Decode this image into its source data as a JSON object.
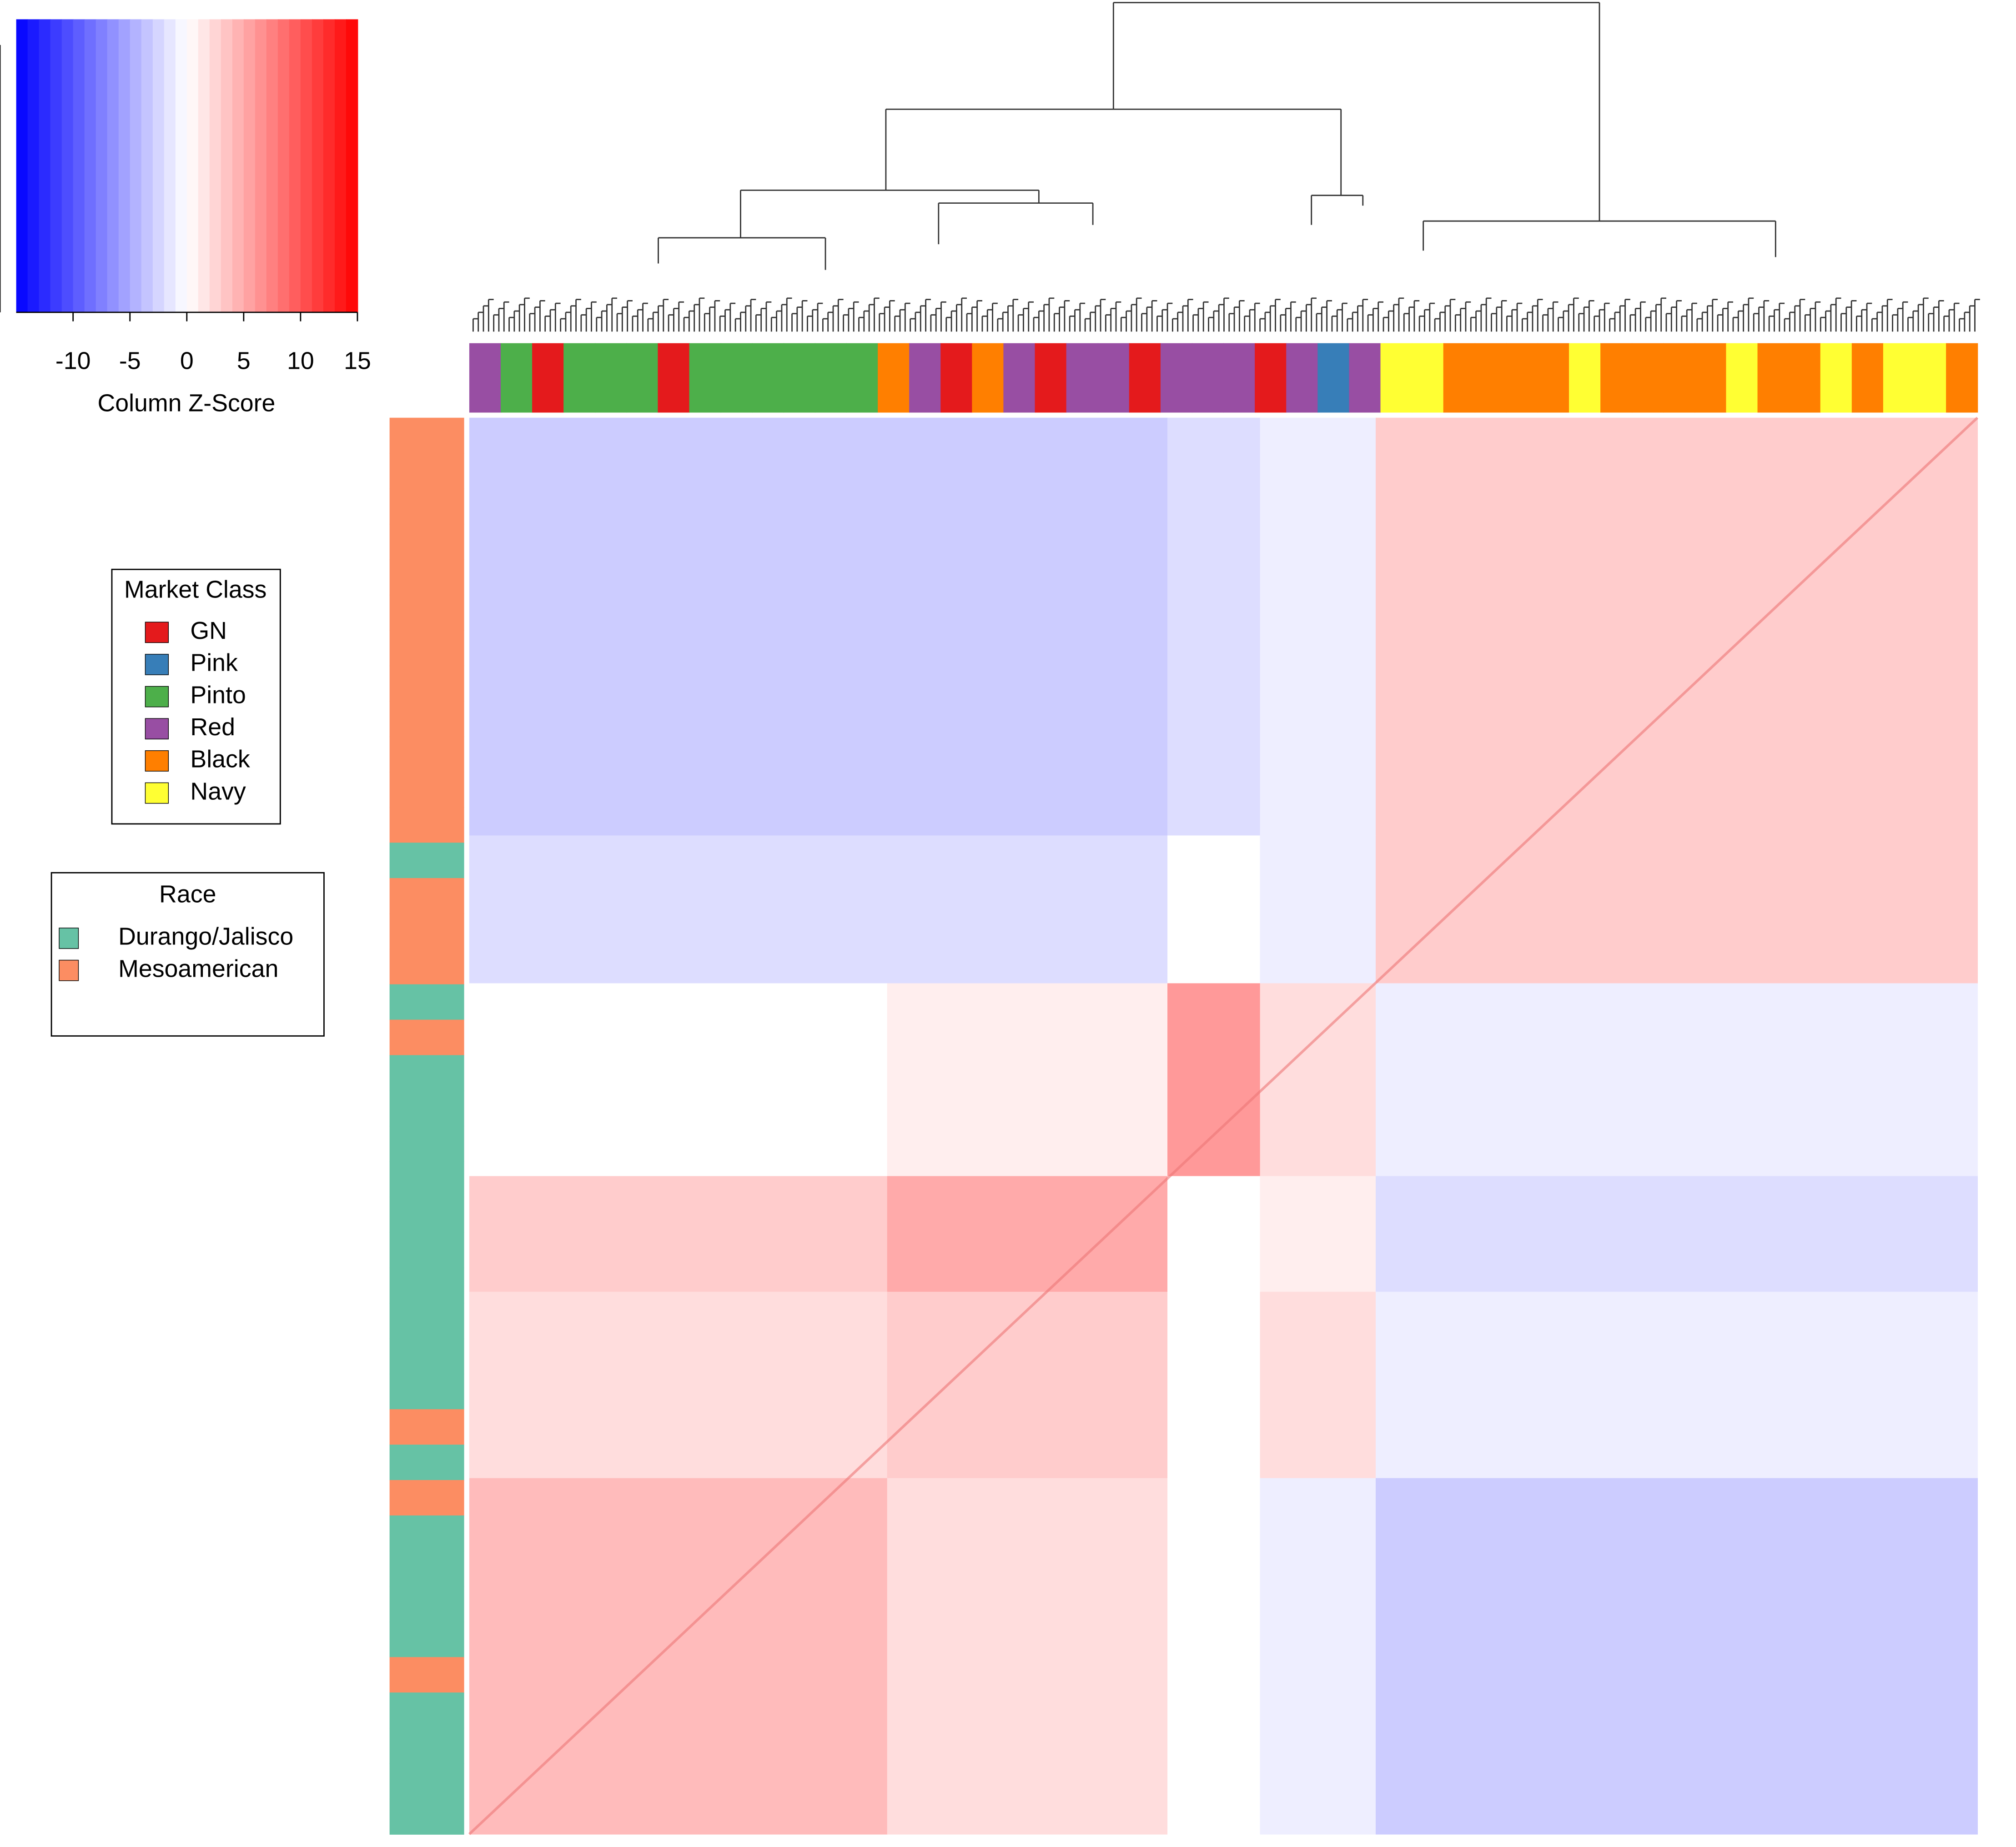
{
  "chart_data": {
    "type": "heatmap",
    "xlabel": "Column Z-Score",
    "xlim": [
      -15,
      15
    ],
    "xticks": [
      -10,
      -5,
      0,
      5,
      10,
      15
    ],
    "low_color": "#0000ff",
    "mid_color": "#ffffff",
    "high_color": "#ff0000",
    "values": [
      [
        -3,
        -3,
        -2,
        -1,
        3
      ],
      [
        -2,
        -2,
        0,
        -1,
        3
      ],
      [
        0,
        1,
        6,
        2,
        -1
      ],
      [
        3,
        5,
        0,
        1,
        -2
      ],
      [
        2,
        3,
        0,
        2,
        -1
      ],
      [
        4,
        2,
        0,
        -1,
        -3
      ]
    ],
    "column_classes": [
      "Red",
      "Pinto",
      "GN",
      "Pinto",
      "Pinto",
      "Pinto",
      "GN",
      "Pinto",
      "Pinto",
      "Pinto",
      "Pinto",
      "Pinto",
      "Pinto",
      "Black",
      "Red",
      "GN",
      "Black",
      "Red",
      "GN",
      "Red",
      "Red",
      "GN",
      "Red",
      "Red",
      "Red",
      "GN",
      "Red",
      "Pink",
      "Red",
      "Navy",
      "Navy",
      "Black",
      "Black",
      "Black",
      "Black",
      "Navy",
      "Black",
      "Black",
      "Black",
      "Black",
      "Navy",
      "Black",
      "Black",
      "Navy",
      "Black",
      "Navy",
      "Navy",
      "Black"
    ],
    "row_races": [
      "Mesoamerican",
      "Mesoamerican",
      "Mesoamerican",
      "Mesoamerican",
      "Mesoamerican",
      "Mesoamerican",
      "Mesoamerican",
      "Mesoamerican",
      "Mesoamerican",
      "Mesoamerican",
      "Mesoamerican",
      "Mesoamerican",
      "Durango/Jalisco",
      "Mesoamerican",
      "Mesoamerican",
      "Mesoamerican",
      "Durango/Jalisco",
      "Mesoamerican",
      "Durango/Jalisco",
      "Durango/Jalisco",
      "Durango/Jalisco",
      "Durango/Jalisco",
      "Durango/Jalisco",
      "Durango/Jalisco",
      "Durango/Jalisco",
      "Durango/Jalisco",
      "Durango/Jalisco",
      "Durango/Jalisco",
      "Mesoamerican",
      "Durango/Jalisco",
      "Mesoamerican",
      "Durango/Jalisco",
      "Durango/Jalisco",
      "Durango/Jalisco",
      "Durango/Jalisco",
      "Mesoamerican",
      "Durango/Jalisco",
      "Durango/Jalisco",
      "Durango/Jalisco",
      "Durango/Jalisco"
    ],
    "market_class": {
      "title": "Market Class",
      "entries": [
        {
          "name": "GN",
          "color": "#e41a1c"
        },
        {
          "name": "Pink",
          "color": "#377eb8"
        },
        {
          "name": "Pinto",
          "color": "#4daf4a"
        },
        {
          "name": "Red",
          "color": "#984ea3"
        },
        {
          "name": "Black",
          "color": "#ff7f00"
        },
        {
          "name": "Navy",
          "color": "#ffff33"
        }
      ]
    },
    "race": {
      "title": "Race",
      "entries": [
        {
          "name": "Durango/Jalisco",
          "color": "#66c2a5"
        },
        {
          "name": "Mesoamerican",
          "color": "#fc8d62"
        }
      ]
    }
  }
}
